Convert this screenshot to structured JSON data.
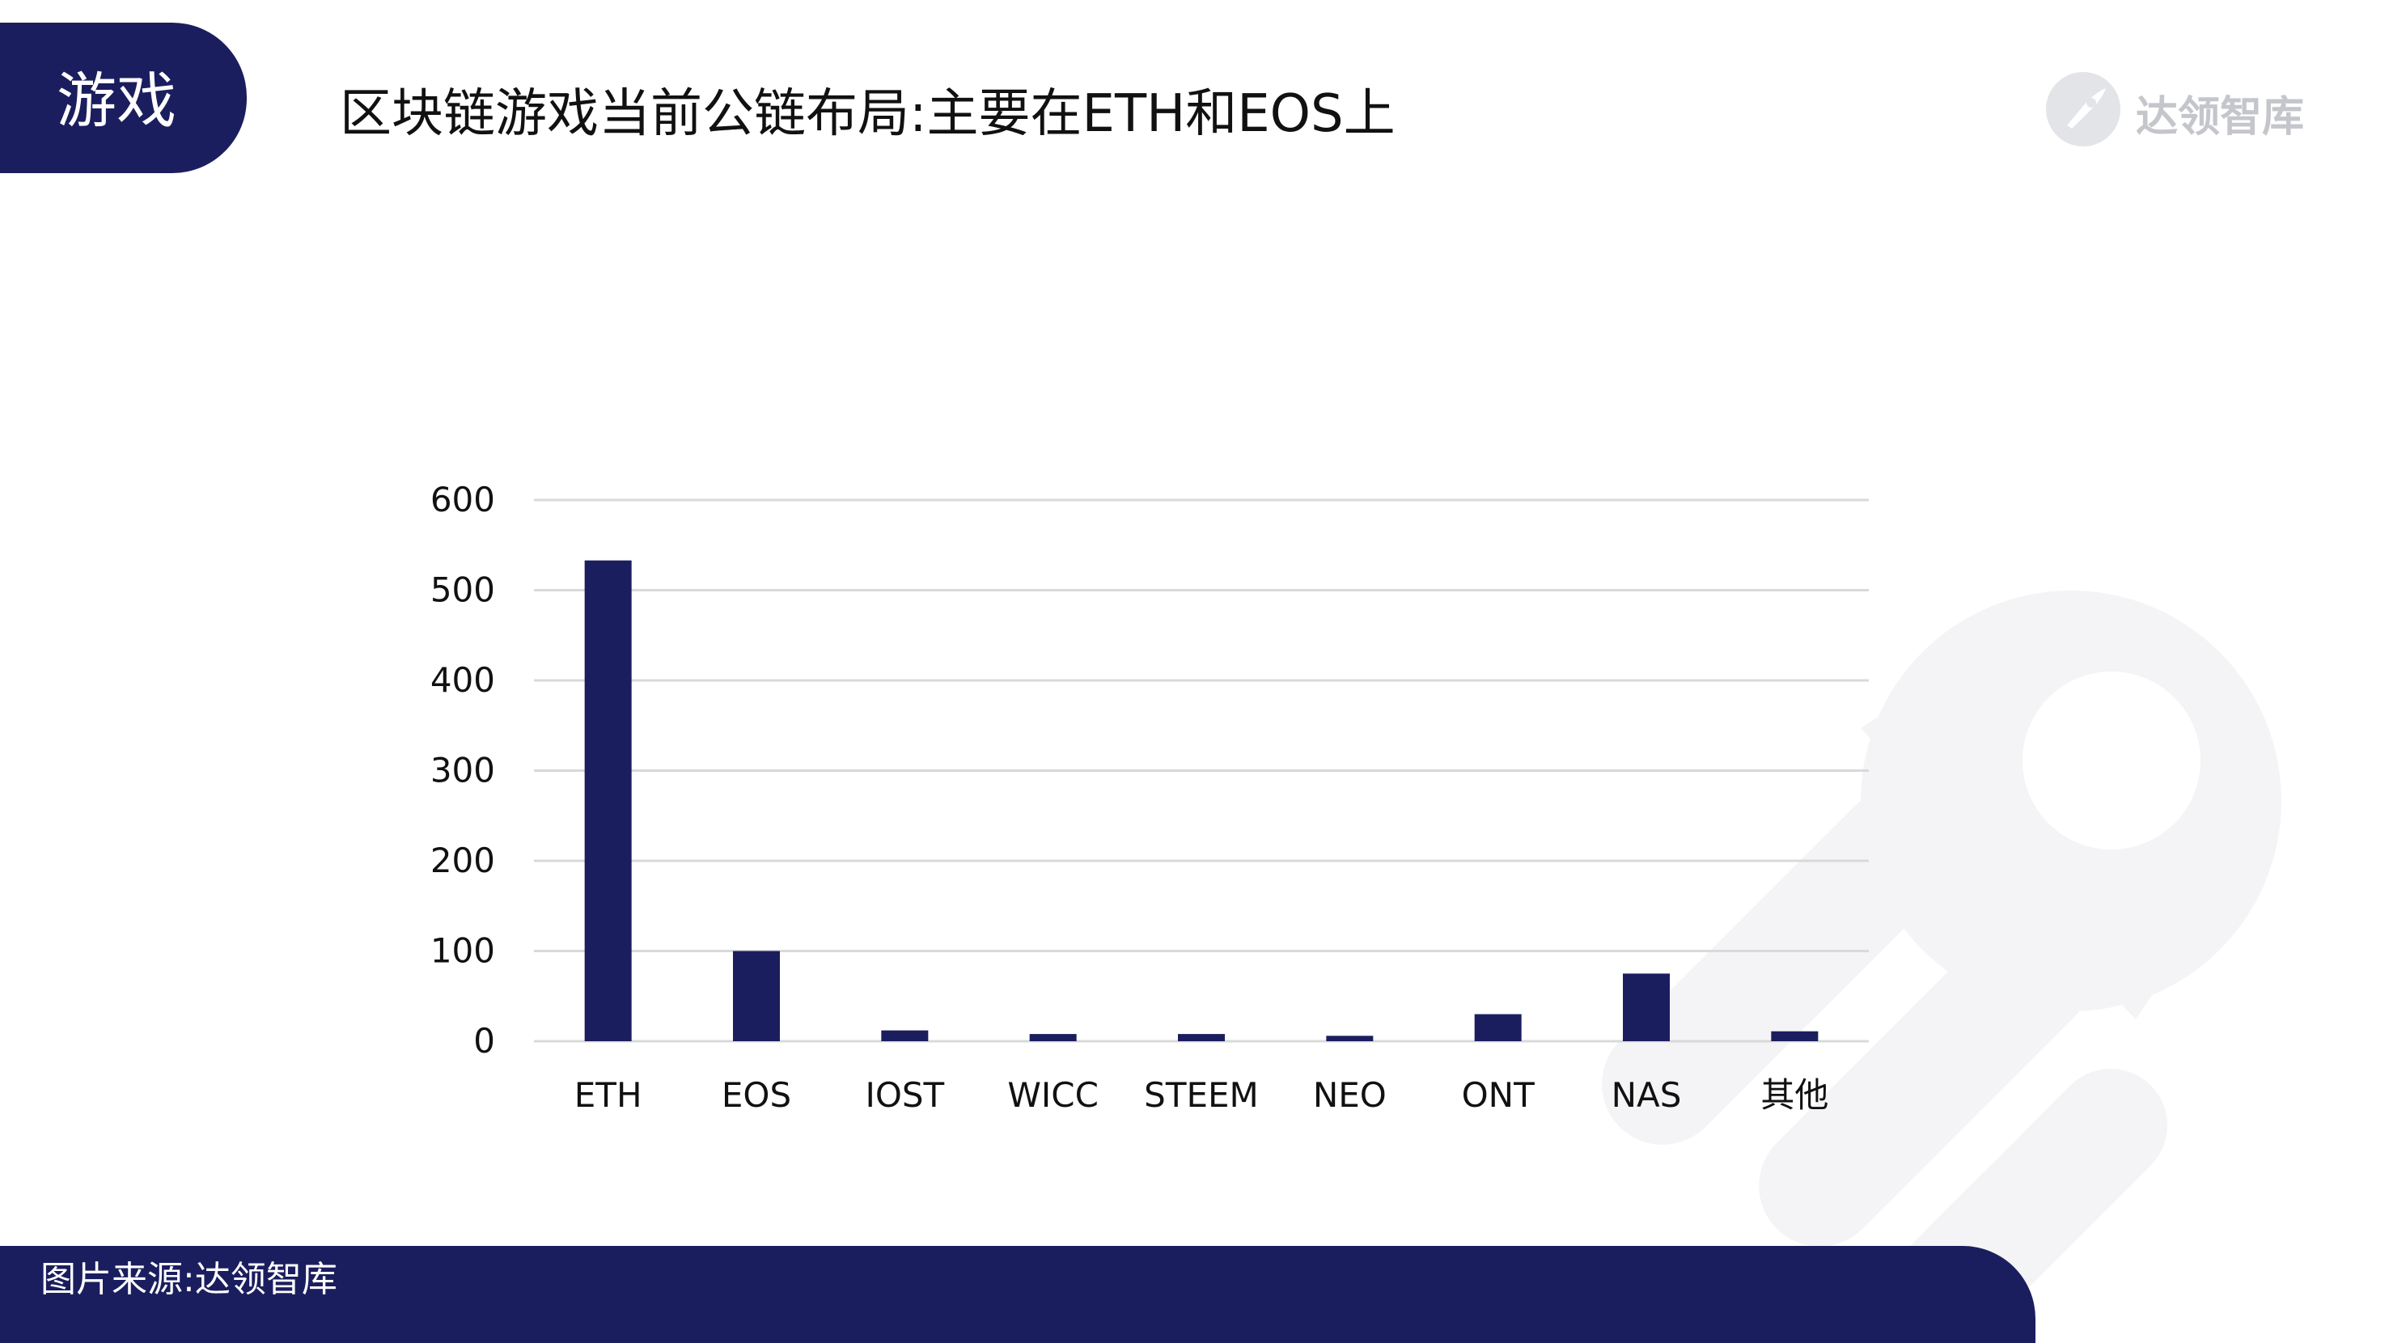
{
  "header": {
    "section_label": "游戏",
    "title": "区块链游戏当前公链布局:主要在ETH和EOS上",
    "brand": "达领智库"
  },
  "footer": {
    "source": "图片来源:达领智库"
  },
  "colors": {
    "navy": "#1b1e5e",
    "bar": "#1b1e5e",
    "grid": "#d9d9d9",
    "watermark": "#f4f4f6"
  },
  "icons": {
    "brand": "rocket-icon"
  },
  "chart_data": {
    "type": "bar",
    "title": "",
    "xlabel": "",
    "ylabel": "",
    "categories": [
      "ETH",
      "EOS",
      "IOST",
      "WICC",
      "STEEM",
      "NEO",
      "ONT",
      "NAS",
      "其他"
    ],
    "values": [
      533,
      100,
      12,
      8,
      8,
      6,
      30,
      75,
      11
    ],
    "ylim": [
      0,
      600
    ],
    "yticks": [
      0,
      100,
      200,
      300,
      400,
      500,
      600
    ],
    "grid": true,
    "legend": "none"
  }
}
